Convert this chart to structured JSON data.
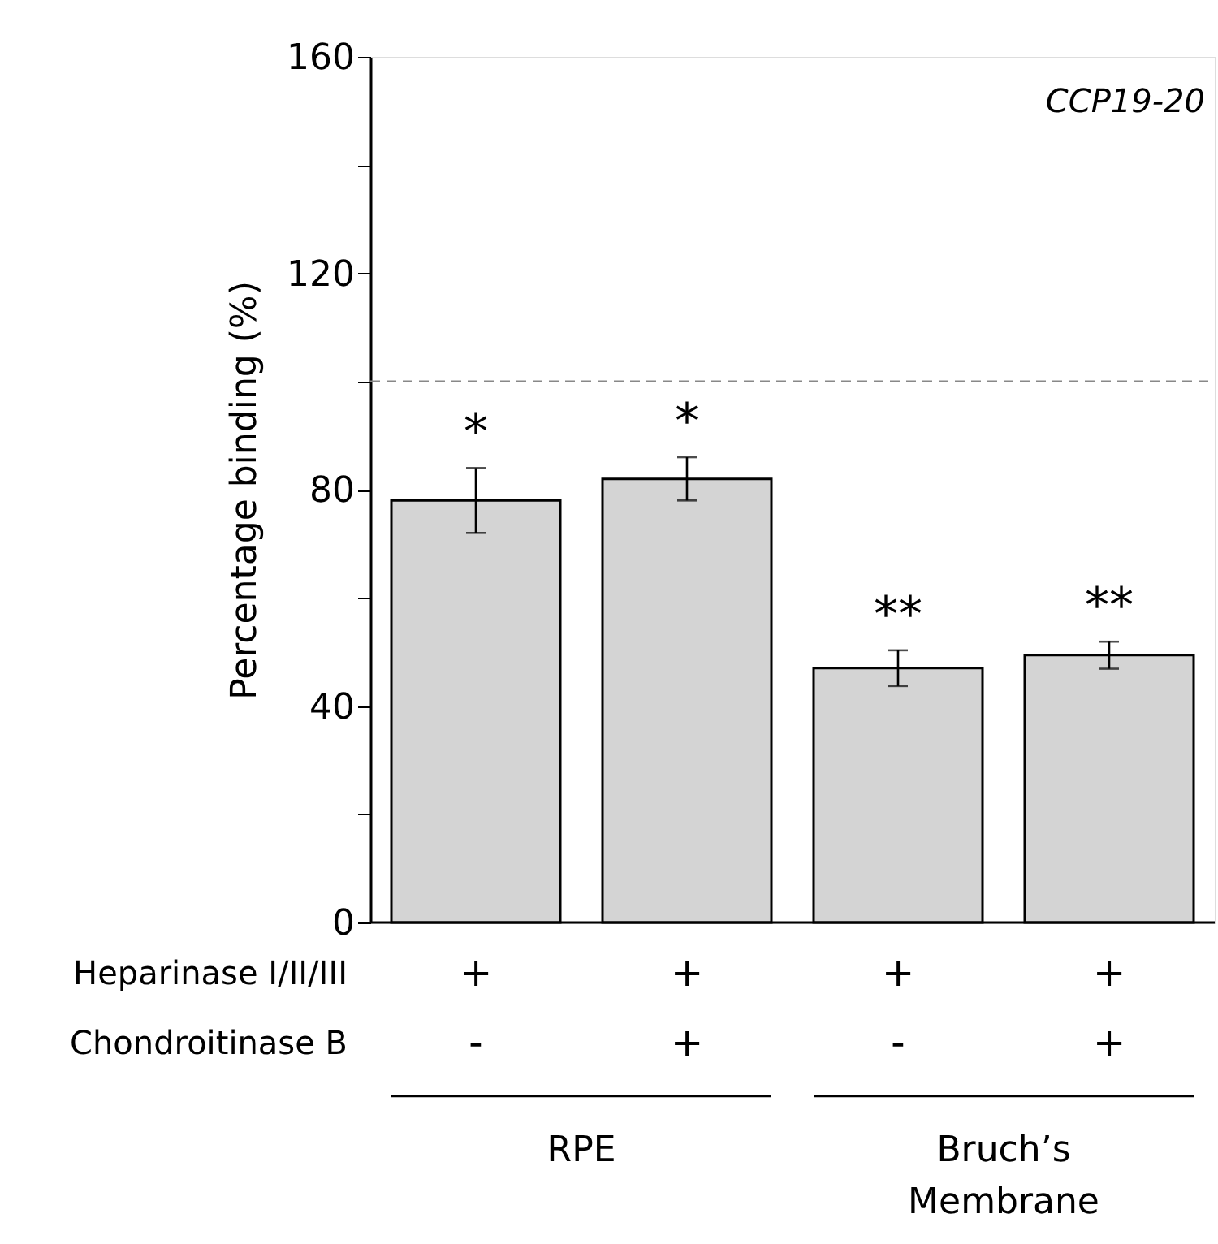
{
  "chart_data": {
    "type": "bar",
    "ylabel": "Percentage binding (%)",
    "categories": [
      null,
      null,
      null,
      null
    ],
    "values": [
      78,
      82,
      47,
      49.4
    ],
    "errors": [
      6,
      4,
      3.3,
      2.5
    ],
    "color": "#d4d4d4",
    "ylim": [
      0,
      160
    ],
    "yticks": [
      0,
      {
        "value": 20,
        "label": null
      },
      40,
      {
        "value": 60,
        "label": null
      },
      80,
      {
        "value": 100,
        "label": null
      },
      120,
      {
        "value": 140,
        "label": null
      },
      160
    ],
    "ref_lines": [
      {
        "axis": "y",
        "value": 100,
        "label": null,
        "color": "#888888",
        "line_style": "dashed"
      }
    ],
    "annotations": [
      "CCP19-20",
      "*",
      "*",
      "**",
      "**",
      "Heparinase I/II/III",
      "+",
      "+",
      "+",
      "+",
      "Chondroitinase B",
      "-",
      "+",
      "-",
      "+",
      "RPE",
      "Bruch’s Membrane"
    ]
  }
}
